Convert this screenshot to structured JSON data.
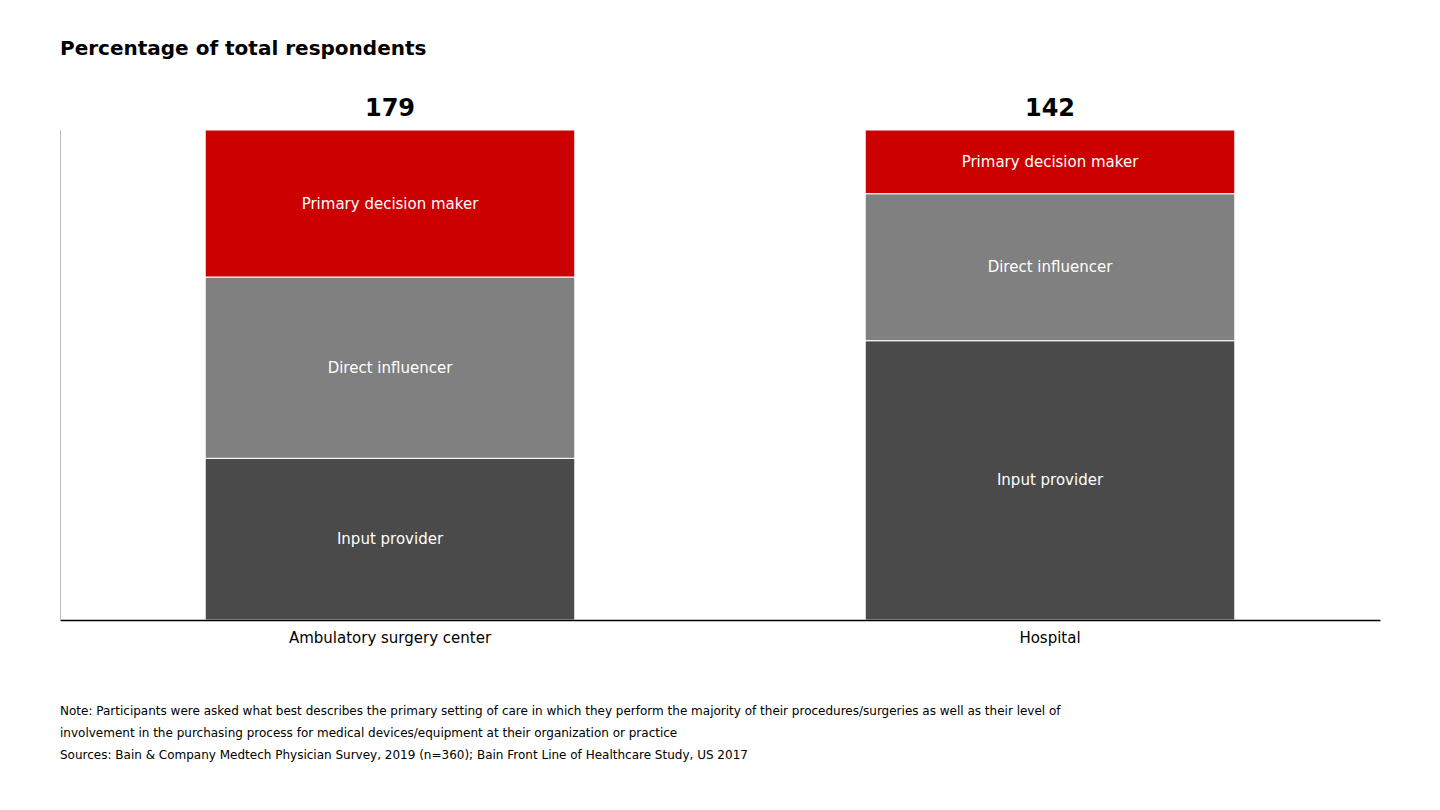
{
  "chart_data": {
    "type": "bar",
    "title": "Percentage of total respondents",
    "stacked": true,
    "categories": [
      "Ambulatory surgery center",
      "Hospital"
    ],
    "series": [
      {
        "name": "Input provider",
        "color": "#4a4a4a",
        "values": [
          33,
          57
        ]
      },
      {
        "name": "Direct influencer",
        "color": "#808080",
        "values": [
          37,
          30
        ]
      },
      {
        "name": "Primary decision maker",
        "color": "#cc0000",
        "values": [
          30,
          13
        ]
      }
    ],
    "annotations": [
      "179",
      "142"
    ],
    "notes": [
      "Note: Participants were asked what best describes the primary setting of care in which they perform the majority of their procedures/surgeries as well as their level of",
      "involvement in the purchasing process for medical devices/equipment at their organization or practice",
      "Sources: Bain & Company Medtech Physician Survey, 2019 (n=360); Bain Front Line of Healthcare Study, US 2017"
    ],
    "ylim": [
      0,
      100
    ],
    "tick_labels": "x"
  }
}
